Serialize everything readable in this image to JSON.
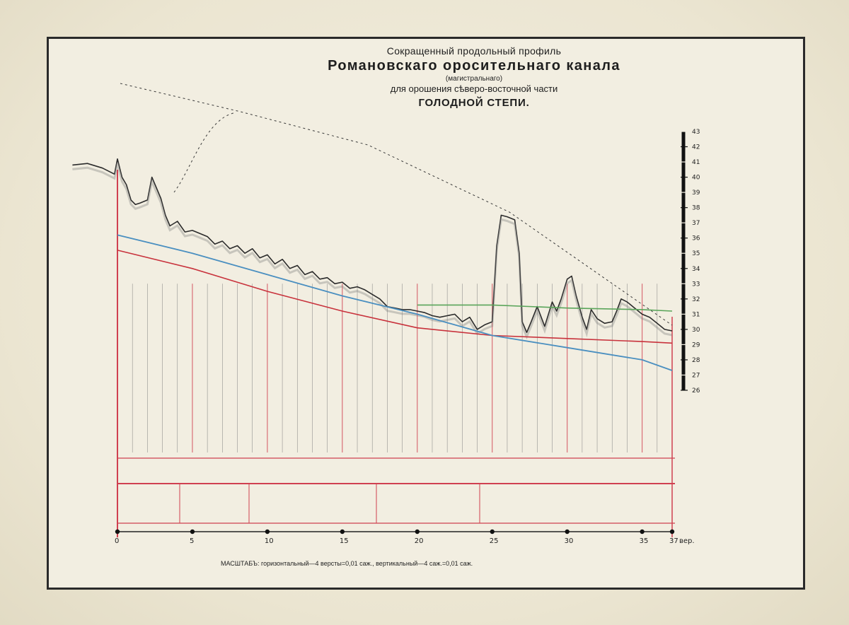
{
  "title": {
    "line1": "Сокращенный продольный профиль",
    "line2": "Романовскаго оросительнаго канала",
    "line3": "(магистральнаго)",
    "line4": "для орошения сѣверо-восточной части",
    "line5": "ГОЛОДНОЙ СТЕПИ."
  },
  "scale_note": "МАСШТАБЪ: горизонтальный—4 версты=0,01 саж., вертикальный—4 саж.=0,01 саж.",
  "colors": {
    "ground_profile": "#2b2b2b",
    "canal_bottom": "#c8323c",
    "design_water_level": "#4a8fc0",
    "green_level": "#5aa55a",
    "grid_lines": "#7a7a7a",
    "station_verticals": "#d04050",
    "frame": "#2a2a2a",
    "dashed_route": "#3a3a3a"
  },
  "chart_data": {
    "type": "line",
    "title": "",
    "xlabel": "",
    "ylabel": "",
    "x_unit": "вер.",
    "xlim": [
      0,
      37
    ],
    "ylim": [
      26,
      43
    ],
    "x_ticks": [
      0,
      5,
      10,
      15,
      20,
      25,
      30,
      35,
      37
    ],
    "y_ticks": [
      26,
      27,
      28,
      29,
      30,
      31,
      32,
      33,
      34,
      35,
      36,
      37,
      38,
      39,
      40,
      41,
      42,
      43
    ],
    "grid": "vertical",
    "legend": "none",
    "series": [
      {
        "x": [
          -3,
          -2,
          -1,
          -0.2,
          0,
          0.3,
          0.6,
          0.9,
          1.2,
          1.5,
          2,
          2.3,
          2.6,
          2.9,
          3.2,
          3.5,
          4,
          4.5,
          5,
          5.5,
          6,
          6.5,
          7,
          7.5,
          8,
          8.5,
          9,
          9.5,
          10,
          10.5,
          11,
          11.5,
          12,
          12.5,
          13,
          13.5,
          14,
          14.5,
          15,
          15.5,
          16,
          16.5,
          17,
          17.5,
          18,
          18.5,
          19,
          19.5,
          20,
          20.5,
          21,
          21.5,
          22,
          22.5,
          23,
          23.5,
          24,
          24.5,
          25,
          25.3,
          25.6,
          26,
          26.5,
          26.8,
          27,
          27.3,
          27.6,
          28,
          28.5,
          29,
          29.3,
          29.6,
          30,
          30.3,
          30.6,
          31,
          31.3,
          31.6,
          32,
          32.5,
          33,
          33.3,
          33.6,
          34,
          34.5,
          35,
          35.5,
          36,
          36.5,
          37
        ],
        "values": [
          40.8,
          40.9,
          40.6,
          40.2,
          41.2,
          40.0,
          39.5,
          38.5,
          38.2,
          38.3,
          38.5,
          40.0,
          39.3,
          38.6,
          37.5,
          36.8,
          37.1,
          36.4,
          36.5,
          36.3,
          36.1,
          35.6,
          35.8,
          35.3,
          35.5,
          35.0,
          35.3,
          34.7,
          34.9,
          34.3,
          34.6,
          34.0,
          34.2,
          33.6,
          33.8,
          33.3,
          33.4,
          33.0,
          33.1,
          32.7,
          32.8,
          32.6,
          32.3,
          32.0,
          31.5,
          31.4,
          31.3,
          31.3,
          31.2,
          31.1,
          30.9,
          30.8,
          30.9,
          31.0,
          30.5,
          30.8,
          30.0,
          30.3,
          30.5,
          35.5,
          37.5,
          37.4,
          37.2,
          35.0,
          30.5,
          29.8,
          30.5,
          31.5,
          30.2,
          31.8,
          31.2,
          32.0,
          33.3,
          33.5,
          32.2,
          30.8,
          30.0,
          31.3,
          30.7,
          30.4,
          30.5,
          31.2,
          32.0,
          31.8,
          31.4,
          31.0,
          30.8,
          30.4,
          30.0,
          29.9
        ]
      },
      {
        "x": [
          0,
          5,
          10,
          15,
          20,
          25,
          30,
          35,
          37
        ],
        "values": [
          35.2,
          34.0,
          32.5,
          31.2,
          30.1,
          29.6,
          29.4,
          29.2,
          29.1
        ]
      },
      {
        "x": [
          0,
          5,
          10,
          15,
          20,
          25,
          30,
          35,
          37
        ],
        "values": [
          36.2,
          35.0,
          33.6,
          32.2,
          31.0,
          29.6,
          28.8,
          28.0,
          27.3
        ]
      },
      {
        "x": [
          20,
          25,
          30,
          35,
          37
        ],
        "values": [
          31.6,
          31.6,
          31.4,
          31.3,
          31.2
        ]
      }
    ]
  }
}
